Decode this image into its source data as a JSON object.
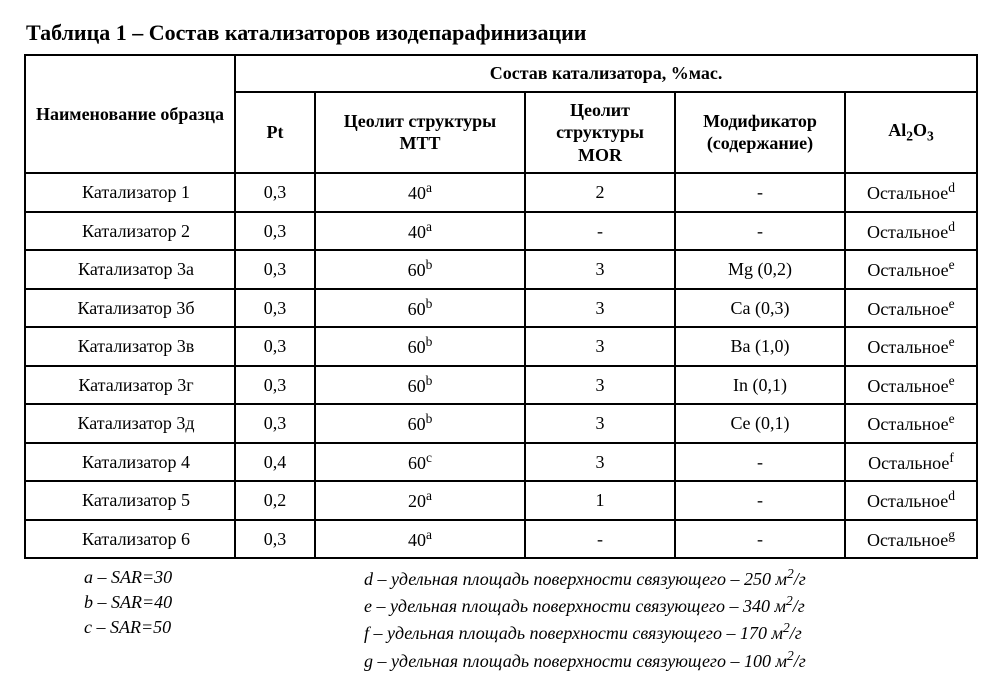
{
  "title": "Таблица 1 – Состав катализаторов изодепарафинизации",
  "table": {
    "header": {
      "name": "Наименование образца",
      "group": "Состав катализатора, %мас.",
      "pt": "Pt",
      "mtt": "Цеолит структуры MTT",
      "mor": "Цеолит структуры MOR",
      "mod": "Модификатор (содержание)",
      "al_base": "Al",
      "al_sub1": "2",
      "al_mid": "O",
      "al_sub2": "3"
    },
    "rows": [
      {
        "name": "Катализатор 1",
        "pt": "0,3",
        "mtt_val": "40",
        "mtt_sup": "a",
        "mor": "2",
        "mod": "-",
        "al_val": "Остальное",
        "al_sup": "d"
      },
      {
        "name": "Катализатор 2",
        "pt": "0,3",
        "mtt_val": "40",
        "mtt_sup": "a",
        "mor": "-",
        "mod": "-",
        "al_val": "Остальное",
        "al_sup": "d"
      },
      {
        "name": "Катализатор 3а",
        "pt": "0,3",
        "mtt_val": "60",
        "mtt_sup": "b",
        "mor": "3",
        "mod": "Mg (0,2)",
        "al_val": "Остальное",
        "al_sup": "e"
      },
      {
        "name": "Катализатор 3б",
        "pt": "0,3",
        "mtt_val": "60",
        "mtt_sup": "b",
        "mor": "3",
        "mod": "Ca (0,3)",
        "al_val": "Остальное",
        "al_sup": "e"
      },
      {
        "name": "Катализатор 3в",
        "pt": "0,3",
        "mtt_val": "60",
        "mtt_sup": "b",
        "mor": "3",
        "mod": "Ba (1,0)",
        "al_val": "Остальное",
        "al_sup": "e"
      },
      {
        "name": "Катализатор 3г",
        "pt": "0,3",
        "mtt_val": "60",
        "mtt_sup": "b",
        "mor": "3",
        "mod": "In (0,1)",
        "al_val": "Остальное",
        "al_sup": "e"
      },
      {
        "name": "Катализатор 3д",
        "pt": "0,3",
        "mtt_val": "60",
        "mtt_sup": "b",
        "mor": "3",
        "mod": "Ce (0,1)",
        "al_val": "Остальное",
        "al_sup": "e"
      },
      {
        "name": "Катализатор 4",
        "pt": "0,4",
        "mtt_val": "60",
        "mtt_sup": "c",
        "mor": "3",
        "mod": "-",
        "al_val": "Остальное",
        "al_sup": "f"
      },
      {
        "name": "Катализатор 5",
        "pt": "0,2",
        "mtt_val": "20",
        "mtt_sup": "a",
        "mor": "1",
        "mod": "-",
        "al_val": "Остальное",
        "al_sup": "d"
      },
      {
        "name": "Катализатор 6",
        "pt": "0,3",
        "mtt_val": "40",
        "mtt_sup": "a",
        "mor": "-",
        "mod": "-",
        "al_val": "Остальное",
        "al_sup": "g"
      }
    ]
  },
  "footnotes": {
    "left": [
      "a – SAR=30",
      "b – SAR=40",
      "c – SAR=50"
    ],
    "right_prefix": [
      "d",
      "e",
      "f",
      "g"
    ],
    "right_text": " – удельная площадь поверхности связующего – ",
    "right_val": [
      "250",
      "340",
      "170",
      "100"
    ],
    "right_unit_m": " м",
    "right_unit_sup": "2",
    "right_unit_suffix": "/г"
  }
}
